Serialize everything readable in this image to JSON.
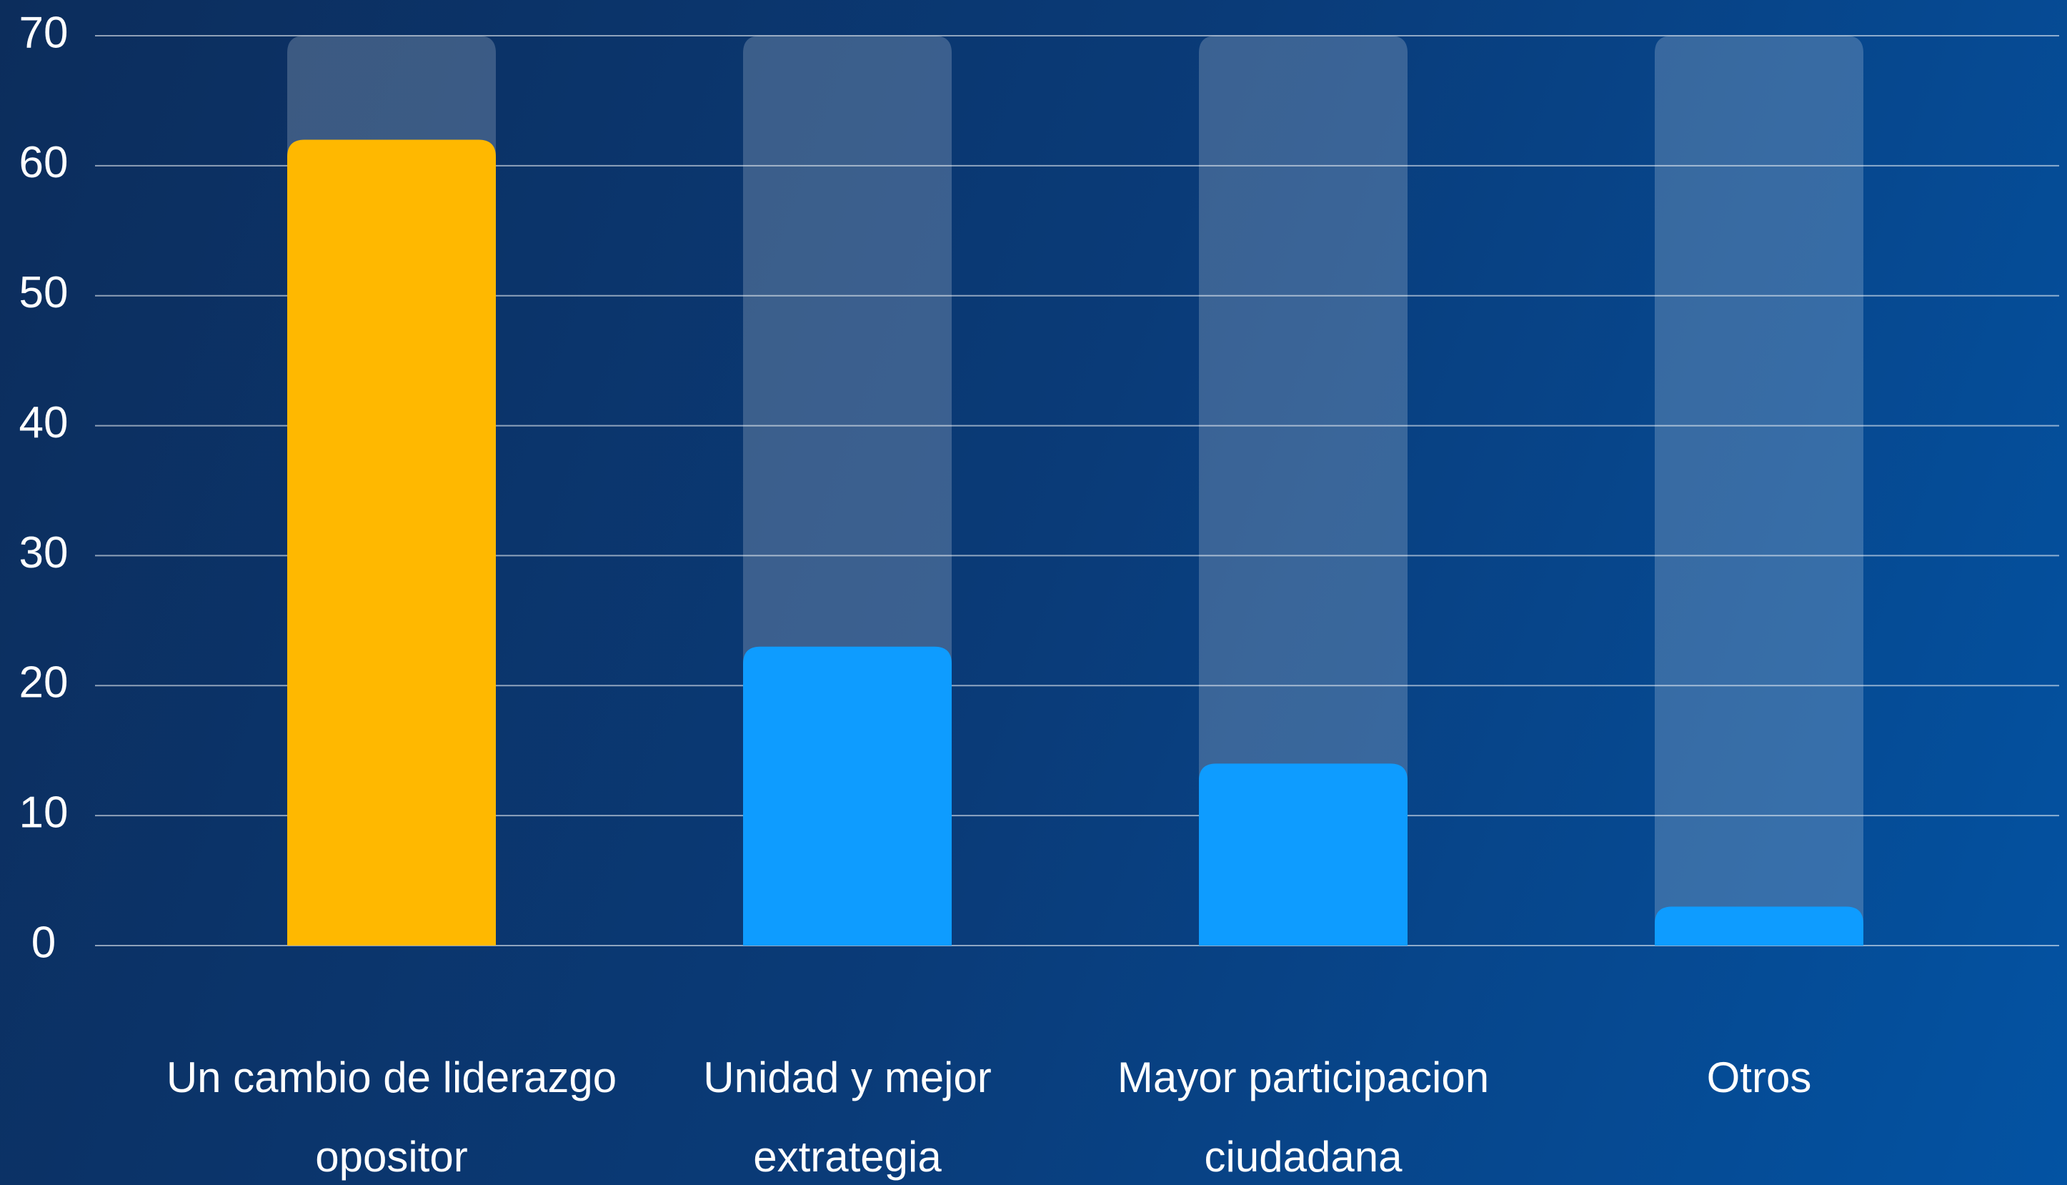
{
  "chart_data": {
    "type": "bar",
    "categories": [
      "Un cambio de liderazgo opositor",
      "Unidad y mejor extrategia",
      "Mayor participacion ciudadana",
      "Otros"
    ],
    "values": [
      62,
      23,
      14,
      3
    ],
    "colors": [
      "#ffb800",
      "#0e9cff",
      "#0e9cff",
      "#0e9cff"
    ],
    "ylim": [
      0,
      70
    ],
    "yticks": [
      0,
      10,
      20,
      30,
      40,
      50,
      60,
      70
    ],
    "grid": true
  }
}
